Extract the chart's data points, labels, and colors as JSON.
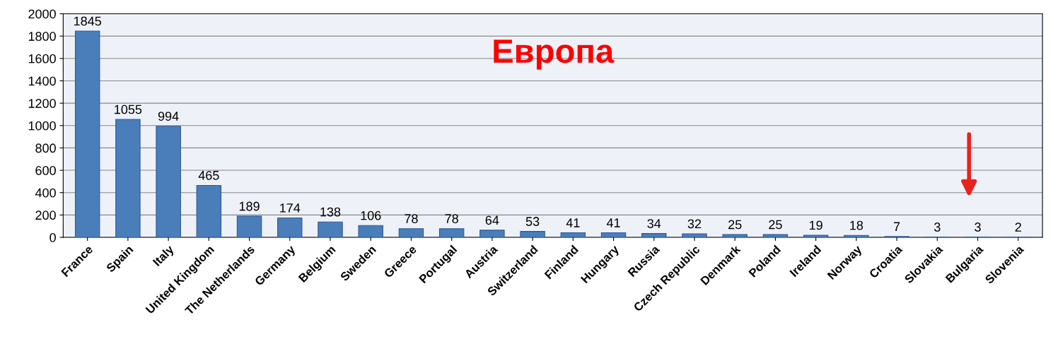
{
  "chart_data": {
    "type": "bar",
    "title": "Европа",
    "categories": [
      "France",
      "Spain",
      "Italy",
      "United Kingdom",
      "The Netherlands",
      "Germany",
      "Belgium",
      "Sweden",
      "Greece",
      "Portugal",
      "Austria",
      "Switzerland",
      "Finland",
      "Hungary",
      "Russia",
      "Czech Republic",
      "Denmark",
      "Poland",
      "Ireland",
      "Norway",
      "Croatia",
      "Slovakia",
      "Bulgaria",
      "Slovenia"
    ],
    "values": [
      1845,
      1055,
      994,
      465,
      189,
      174,
      138,
      106,
      78,
      78,
      64,
      53,
      41,
      41,
      34,
      32,
      25,
      25,
      19,
      18,
      7,
      3,
      3,
      2
    ],
    "color": "#4a7ebb",
    "ylim": [
      0,
      2000
    ],
    "yticks": [
      0,
      200,
      400,
      600,
      800,
      1000,
      1200,
      1400,
      1600,
      1800,
      2000
    ],
    "grid": "y",
    "data_labels": true
  }
}
